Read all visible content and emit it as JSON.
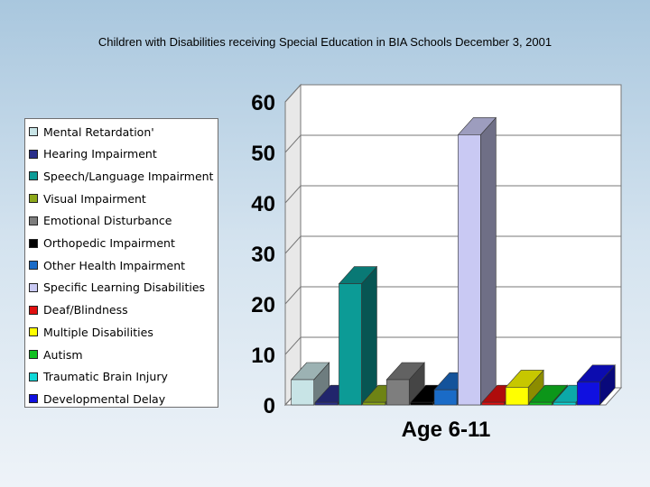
{
  "title": "Children with Disabilities receiving Special Education in BIA Schools December 3, 2001",
  "chart_data": {
    "type": "bar",
    "title": "Children with Disabilities receiving Special Education in BIA Schools December 3, 2001",
    "xlabel": "Age 6-11",
    "ylabel": "",
    "ylim": [
      0,
      60
    ],
    "yticks": [
      "0",
      "10",
      "20",
      "30",
      "40",
      "50",
      "60"
    ],
    "grid": true,
    "legend_position": "left",
    "categories": [
      "Age 6-11"
    ],
    "series": [
      {
        "name": "Mental Retardation'",
        "values": [
          5
        ],
        "color": "#c8e4e6"
      },
      {
        "name": "Hearing Impairment",
        "values": [
          0.5
        ],
        "color": "#2a2f8a"
      },
      {
        "name": "Speech/Language Impairment",
        "values": [
          24
        ],
        "color": "#0c9b96"
      },
      {
        "name": "Visual Impairment",
        "values": [
          0.5
        ],
        "color": "#8da81a"
      },
      {
        "name": "Emotional Disturbance",
        "values": [
          5
        ],
        "color": "#7e7e7e"
      },
      {
        "name": "Orthopedic Impairment",
        "values": [
          0.5
        ],
        "color": "#000000"
      },
      {
        "name": "Other Health Impairment",
        "values": [
          3
        ],
        "color": "#1a6bc7"
      },
      {
        "name": "Specific Learning Disabilities",
        "values": [
          53.5
        ],
        "color": "#c9c9f3"
      },
      {
        "name": "Deaf/Blindness",
        "values": [
          0.5
        ],
        "color": "#e01010"
      },
      {
        "name": "Multiple Disabilities",
        "values": [
          3.5
        ],
        "color": "#ffff00"
      },
      {
        "name": "Autism",
        "values": [
          0.5
        ],
        "color": "#10c020"
      },
      {
        "name": "Traumatic Brain Injury",
        "values": [
          0.5
        ],
        "color": "#10d8d8"
      },
      {
        "name": "Developmental Delay",
        "values": [
          4.5
        ],
        "color": "#1010e0"
      }
    ]
  }
}
